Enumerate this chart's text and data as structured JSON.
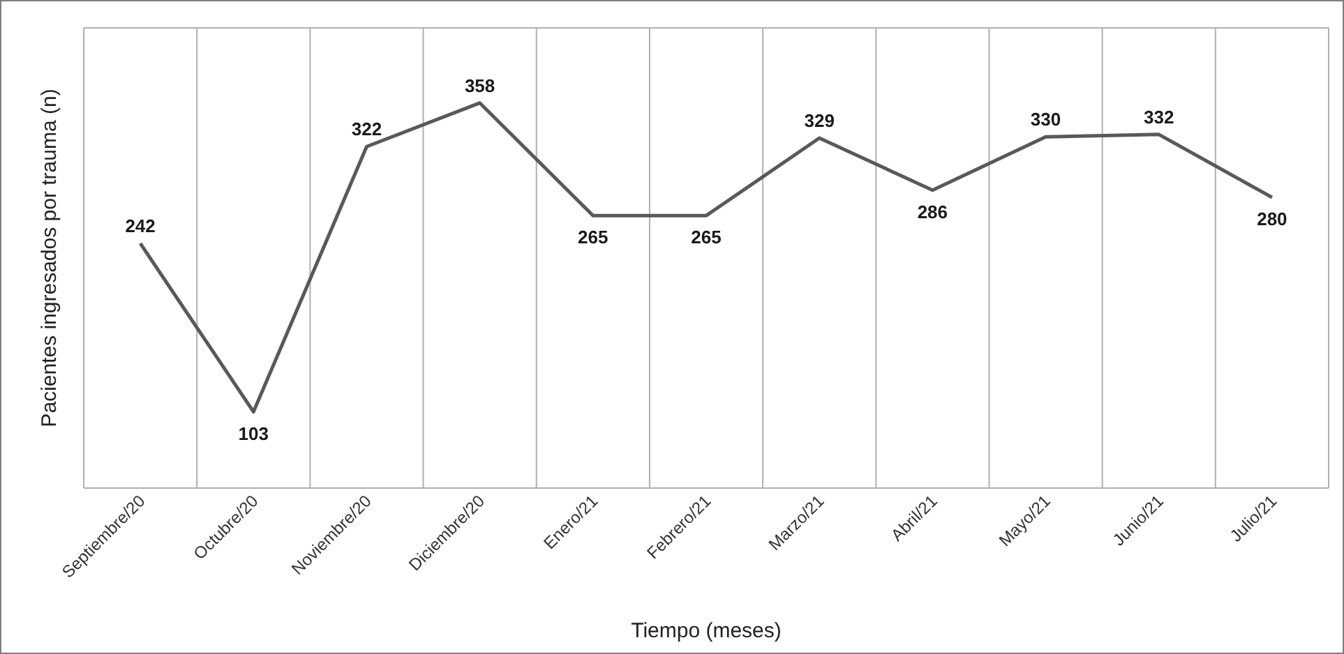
{
  "chart_data": {
    "type": "line",
    "xlabel": "Tiempo (meses)",
    "ylabel": "Pacientes ingresados por trauma (n)",
    "categories": [
      "Septiembre/20",
      "Octubre/20",
      "Noviembre/20",
      "Diciembre/20",
      "Enero/21",
      "Febrero/21",
      "Marzo/21",
      "Abril/21",
      "Mayo/21",
      "Junio/21",
      "Julio/21"
    ],
    "series": [
      {
        "color": "#595959",
        "values": [
          242,
          103,
          322,
          358,
          265,
          265,
          329,
          286,
          330,
          332,
          280
        ]
      }
    ],
    "ylim": [
      40,
      420
    ],
    "data_labels": true,
    "grid": "x",
    "marker": "none",
    "line_style": "solid",
    "tick_labels": "x"
  }
}
